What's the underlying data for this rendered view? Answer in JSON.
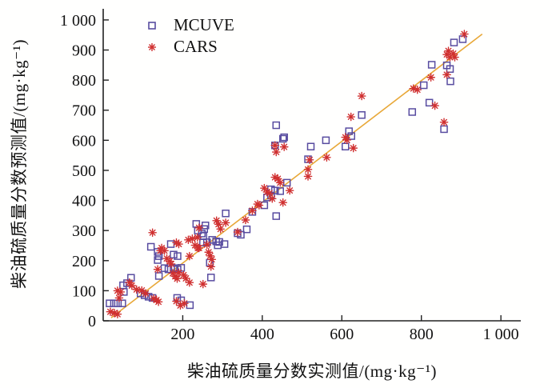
{
  "chart_data": {
    "type": "scatter",
    "title": "",
    "xlabel": "柴油硫质量分数实测值/(mg·kg⁻¹)",
    "ylabel": "柴油硫质量分数预测值/(mg·kg⁻¹)",
    "xlim": [
      0,
      1050
    ],
    "ylim": [
      0,
      1037
    ],
    "grid": false,
    "axis_color": "#222222",
    "tick_label_color": "#111111",
    "xticks": [
      200,
      400,
      600,
      800,
      1000
    ],
    "xtick_labels": [
      "200",
      "400",
      "600",
      "800",
      "1 000"
    ],
    "yticks": [
      0,
      100,
      200,
      300,
      400,
      500,
      600,
      700,
      800,
      900,
      1000
    ],
    "ytick_labels": [
      "0",
      "100",
      "200",
      "300",
      "400",
      "500",
      "600",
      "700",
      "800",
      "900",
      "1 000"
    ],
    "legend": {
      "position": "top-left-inside"
    },
    "fit_line": {
      "color": "#E8A838",
      "x1": 20,
      "y1": 10,
      "x2": 953,
      "y2": 953
    },
    "series": [
      {
        "name": "MCUVE",
        "marker": "open-square",
        "color": "#584CA0",
        "points": [
          [
            16,
            58
          ],
          [
            27,
            58
          ],
          [
            37,
            58
          ],
          [
            48,
            58
          ],
          [
            52,
            96
          ],
          [
            50,
            118
          ],
          [
            60,
            125
          ],
          [
            70,
            143
          ],
          [
            94,
            91
          ],
          [
            104,
            85
          ],
          [
            114,
            80
          ],
          [
            124,
            76
          ],
          [
            120,
            246
          ],
          [
            137,
            229
          ],
          [
            140,
            215
          ],
          [
            137,
            202
          ],
          [
            140,
            149
          ],
          [
            154,
            175
          ],
          [
            164,
            171
          ],
          [
            177,
            175
          ],
          [
            187,
            171
          ],
          [
            196,
            176
          ],
          [
            170,
            255
          ],
          [
            177,
            220
          ],
          [
            187,
            215
          ],
          [
            186,
            76
          ],
          [
            196,
            68
          ],
          [
            218,
            52
          ],
          [
            234,
            322
          ],
          [
            238,
            300
          ],
          [
            248,
            290
          ],
          [
            254,
            305
          ],
          [
            257,
            317
          ],
          [
            252,
            282
          ],
          [
            251,
            260
          ],
          [
            261,
            261
          ],
          [
            274,
            269
          ],
          [
            284,
            264
          ],
          [
            268,
            193
          ],
          [
            271,
            144
          ],
          [
            288,
            251
          ],
          [
            292,
            262
          ],
          [
            305,
            255
          ],
          [
            308,
            357
          ],
          [
            338,
            291
          ],
          [
            346,
            286
          ],
          [
            361,
            304
          ],
          [
            375,
            362
          ],
          [
            405,
            384
          ],
          [
            412,
            410
          ],
          [
            422,
            416
          ],
          [
            432,
            433
          ],
          [
            445,
            431
          ],
          [
            462,
            459
          ],
          [
            422,
            437
          ],
          [
            435,
            348
          ],
          [
            435,
            650
          ],
          [
            452,
            605
          ],
          [
            432,
            583
          ],
          [
            455,
            610
          ],
          [
            522,
            579
          ],
          [
            560,
            600
          ],
          [
            515,
            537
          ],
          [
            609,
            579
          ],
          [
            618,
            630
          ],
          [
            624,
            614
          ],
          [
            650,
            684
          ],
          [
            777,
            694
          ],
          [
            806,
            783
          ],
          [
            820,
            725
          ],
          [
            826,
            851
          ],
          [
            864,
            849
          ],
          [
            872,
            837
          ],
          [
            873,
            796
          ],
          [
            857,
            637
          ],
          [
            882,
            925
          ],
          [
            904,
            936
          ]
        ]
      },
      {
        "name": "CARS",
        "marker": "asterisk",
        "color": "#D03030",
        "points": [
          [
            18,
            30
          ],
          [
            28,
            26
          ],
          [
            36,
            22
          ],
          [
            40,
            76
          ],
          [
            36,
            100
          ],
          [
            44,
            96
          ],
          [
            66,
            127
          ],
          [
            72,
            117
          ],
          [
            84,
            104
          ],
          [
            97,
            101
          ],
          [
            107,
            91
          ],
          [
            127,
            74
          ],
          [
            134,
            69
          ],
          [
            139,
            63
          ],
          [
            124,
            293
          ],
          [
            144,
            233
          ],
          [
            147,
            242
          ],
          [
            154,
            233
          ],
          [
            160,
            207
          ],
          [
            167,
            198
          ],
          [
            171,
            189
          ],
          [
            137,
            171
          ],
          [
            175,
            158
          ],
          [
            181,
            148
          ],
          [
            186,
            140
          ],
          [
            190,
            160
          ],
          [
            184,
            260
          ],
          [
            190,
            255
          ],
          [
            202,
            152
          ],
          [
            208,
            141
          ],
          [
            214,
            269
          ],
          [
            224,
            273
          ],
          [
            231,
            251
          ],
          [
            238,
            242
          ],
          [
            217,
            215
          ],
          [
            217,
            127
          ],
          [
            184,
            65
          ],
          [
            194,
            51
          ],
          [
            204,
            58
          ],
          [
            251,
            122
          ],
          [
            241,
            309
          ],
          [
            237,
            277
          ],
          [
            241,
            242
          ],
          [
            261,
            253
          ],
          [
            265,
            228
          ],
          [
            269,
            216
          ],
          [
            273,
            204
          ],
          [
            271,
            180
          ],
          [
            285,
            333
          ],
          [
            290,
            321
          ],
          [
            295,
            305
          ],
          [
            308,
            326
          ],
          [
            338,
            295
          ],
          [
            358,
            335
          ],
          [
            375,
            366
          ],
          [
            388,
            388
          ],
          [
            392,
            384
          ],
          [
            405,
            441
          ],
          [
            412,
            428
          ],
          [
            418,
            424
          ],
          [
            425,
            406
          ],
          [
            432,
            477
          ],
          [
            439,
            472
          ],
          [
            445,
            459
          ],
          [
            452,
            393
          ],
          [
            469,
            433
          ],
          [
            515,
            480
          ],
          [
            515,
            503
          ],
          [
            519,
            535
          ],
          [
            562,
            543
          ],
          [
            455,
            578
          ],
          [
            435,
            561
          ],
          [
            432,
            583
          ],
          [
            609,
            610
          ],
          [
            613,
            601
          ],
          [
            629,
            574
          ],
          [
            623,
            678
          ],
          [
            650,
            747
          ],
          [
            780,
            772
          ],
          [
            790,
            768
          ],
          [
            824,
            809
          ],
          [
            834,
            715
          ],
          [
            857,
            660
          ],
          [
            864,
            818
          ],
          [
            868,
            897
          ],
          [
            880,
            888
          ],
          [
            872,
            876
          ],
          [
            884,
            876
          ],
          [
            864,
            885
          ],
          [
            908,
            953
          ]
        ]
      }
    ]
  }
}
